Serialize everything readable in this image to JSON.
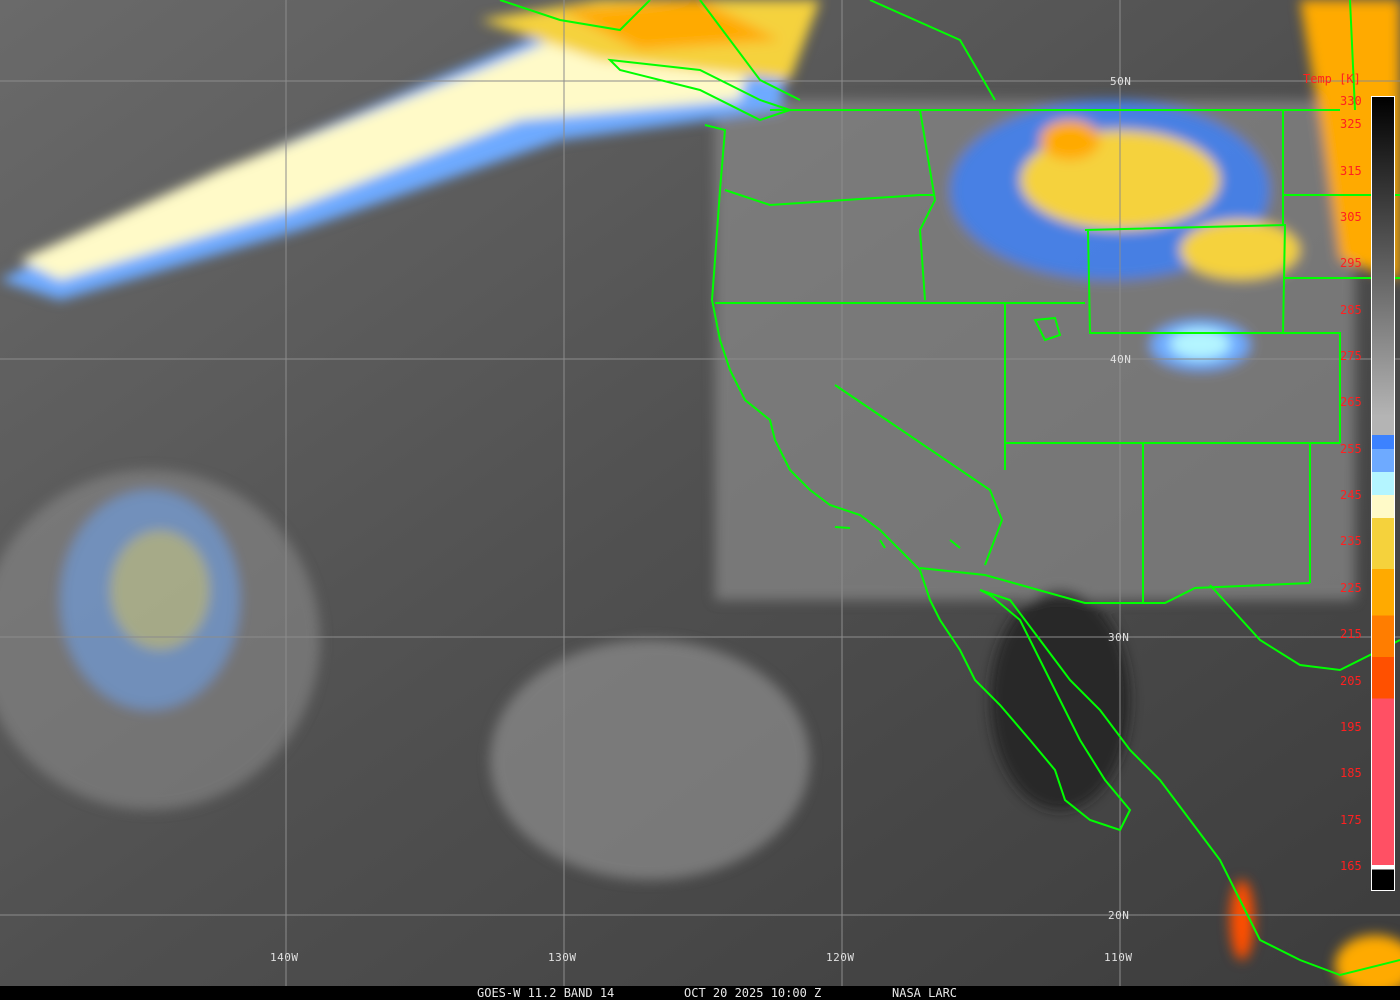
{
  "caption": {
    "satellite": "GOES-W 11.2 BAND 14",
    "datetime": "OCT 20 2025 10:00 Z",
    "source": "NASA LARC"
  },
  "grid": {
    "latitudes": [
      "50N",
      "40N",
      "30N",
      "20N"
    ],
    "longitudes": [
      "140W",
      "130W",
      "120W",
      "110W"
    ]
  },
  "legend": {
    "title": "Temp [K]",
    "labels": [
      "330",
      "325",
      "315",
      "305",
      "295",
      "285",
      "275",
      "265",
      "255",
      "245",
      "235",
      "225",
      "215",
      "205",
      "195",
      "185",
      "175",
      "165"
    ],
    "color_stops": [
      {
        "temp": 330,
        "color": "#000000"
      },
      {
        "temp": 262,
        "color": "#b4b4b4"
      },
      {
        "temp": 258,
        "color": "#3c82ff"
      },
      {
        "temp": 255,
        "color": "#6eaaff"
      },
      {
        "temp": 250,
        "color": "#b4f5ff"
      },
      {
        "temp": 245,
        "color": "#fffac8"
      },
      {
        "temp": 240,
        "color": "#f5d23c"
      },
      {
        "temp": 229,
        "color": "#ffaa00"
      },
      {
        "temp": 219,
        "color": "#ff7d00"
      },
      {
        "temp": 210,
        "color": "#ff5000"
      },
      {
        "temp": 201,
        "color": "#ff5064"
      },
      {
        "temp": 165,
        "color": "#ffffff"
      },
      {
        "temp": 164,
        "color": "#000000"
      }
    ]
  },
  "colors": {
    "borders": "#00ff00",
    "grid": "#8c8c8c",
    "labels": "#ff2020"
  }
}
